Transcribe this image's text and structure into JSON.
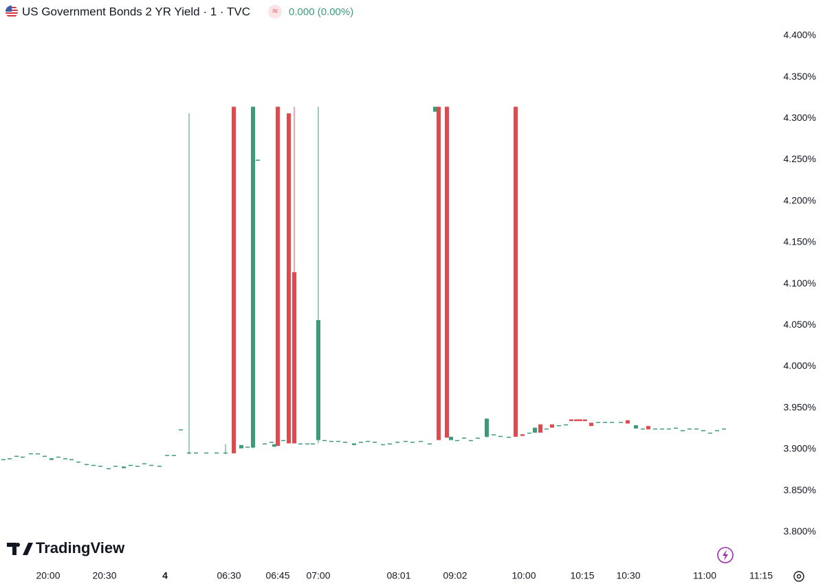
{
  "header": {
    "title": "US Government Bonds 2 YR Yield · 1 · TVC",
    "badge": "≈",
    "change": "0.000 (0.00%)"
  },
  "chart_data": {
    "type": "candlestick",
    "up_color": "#3d9a78",
    "down_color": "#e04a4e",
    "xlim": [
      0,
      111
    ],
    "xticks": [
      {
        "value": 7.0,
        "label": "20:00"
      },
      {
        "value": 15.2,
        "label": "20:30"
      },
      {
        "value": 24.0,
        "label": "4"
      },
      {
        "value": 33.3,
        "label": "06:30"
      },
      {
        "value": 40.4,
        "label": "06:45"
      },
      {
        "value": 46.3,
        "label": "07:00"
      },
      {
        "value": 58.0,
        "label": "08:01"
      },
      {
        "value": 66.2,
        "label": "09:02"
      },
      {
        "value": 76.2,
        "label": "10:00"
      },
      {
        "value": 84.7,
        "label": "10:15"
      },
      {
        "value": 91.4,
        "label": "10:30"
      },
      {
        "value": 102.5,
        "label": "11:00"
      },
      {
        "value": 110.7,
        "label": "11:15"
      }
    ],
    "ylim": [
      3.762,
      4.414
    ],
    "yticks": [
      {
        "value": 3.8,
        "label": "3.800%"
      },
      {
        "value": 3.85,
        "label": "3.850%"
      },
      {
        "value": 3.9,
        "label": "3.900%"
      },
      {
        "value": 3.95,
        "label": "3.950%"
      },
      {
        "value": 4.0,
        "label": "4.000%"
      },
      {
        "value": 4.05,
        "label": "4.050%"
      },
      {
        "value": 4.1,
        "label": "4.100%"
      },
      {
        "value": 4.15,
        "label": "4.150%"
      },
      {
        "value": 4.2,
        "label": "4.200%"
      },
      {
        "value": 4.25,
        "label": "4.250%"
      },
      {
        "value": 4.3,
        "label": "4.300%"
      },
      {
        "value": 4.35,
        "label": "4.350%"
      },
      {
        "value": 4.4,
        "label": "4.400%"
      }
    ],
    "grid": false,
    "x": [
      0.5,
      1.4,
      2.4,
      3.3,
      4.5,
      5.5,
      6.5,
      7.5,
      8.5,
      9.5,
      10.4,
      11.4,
      12.6,
      13.6,
      14.6,
      15.8,
      16.8,
      18.0,
      19.0,
      20.0,
      21.0,
      22.0,
      23.2,
      24.3,
      25.3,
      26.3,
      27.5,
      28.5,
      30.0,
      31.5,
      32.8,
      34.0,
      35.1,
      36.0,
      36.8,
      37.5,
      38.5,
      39.5,
      39.9,
      40.4,
      41.2,
      42.0,
      42.8,
      43.7,
      44.7,
      45.5,
      46.3,
      47.2,
      48.2,
      49.2,
      50.2,
      51.5,
      52.5,
      53.5,
      54.5,
      55.7,
      56.7,
      57.8,
      59.0,
      60.0,
      61.2,
      62.5,
      63.3,
      63.8,
      65.0,
      65.6,
      66.5,
      67.5,
      68.5,
      69.5,
      70.8,
      71.8,
      72.8,
      74.0,
      75.0,
      76.0,
      77.0,
      77.8,
      78.6,
      79.5,
      80.3,
      81.3,
      82.3,
      83.1,
      83.8,
      84.4,
      85.1,
      86.0,
      87.0,
      88.0,
      89.0,
      90.3,
      91.3,
      92.5,
      93.5,
      94.3,
      95.3,
      96.3,
      97.3,
      98.3,
      99.3,
      100.3,
      101.3,
      102.3,
      103.3,
      104.3,
      105.3
    ],
    "open": [
      3.888,
      3.889,
      3.892,
      3.891,
      3.895,
      3.895,
      3.892,
      3.887,
      3.891,
      3.889,
      3.888,
      3.885,
      3.882,
      3.881,
      3.88,
      3.877,
      3.88,
      3.877,
      3.881,
      3.88,
      3.883,
      3.881,
      3.88,
      3.893,
      3.893,
      3.924,
      3.895,
      3.896,
      3.896,
      3.896,
      3.895,
      4.314,
      3.901,
      3.903,
      3.902,
      4.25,
      3.907,
      3.909,
      3.903,
      4.314,
      3.911,
      4.306,
      4.114,
      3.907,
      3.907,
      3.907,
      3.911,
      3.911,
      3.91,
      3.91,
      3.909,
      3.905,
      3.909,
      3.91,
      3.909,
      3.906,
      3.907,
      3.909,
      3.91,
      3.909,
      3.91,
      3.907,
      4.308,
      4.314,
      4.314,
      3.911,
      3.911,
      3.914,
      3.911,
      3.914,
      3.915,
      3.918,
      3.916,
      3.915,
      4.314,
      3.918,
      3.92,
      3.92,
      3.93,
      3.925,
      3.93,
      3.929,
      3.93,
      3.936,
      3.936,
      3.936,
      3.936,
      3.932,
      3.933,
      3.933,
      3.933,
      3.933,
      3.935,
      3.925,
      3.925,
      3.928,
      3.925,
      3.925,
      3.925,
      3.926,
      3.923,
      3.925,
      3.925,
      3.923,
      3.92,
      3.923,
      3.925
    ],
    "high": [
      3.888,
      3.889,
      3.892,
      3.891,
      3.895,
      3.895,
      3.892,
      3.889,
      3.891,
      3.889,
      3.888,
      3.885,
      3.882,
      3.881,
      3.88,
      3.877,
      3.88,
      3.879,
      3.881,
      3.88,
      3.883,
      3.881,
      3.88,
      3.893,
      3.893,
      3.924,
      4.306,
      3.896,
      3.896,
      3.896,
      3.906,
      4.314,
      3.905,
      3.903,
      4.314,
      4.25,
      3.907,
      3.909,
      3.906,
      4.314,
      3.911,
      4.306,
      4.314,
      3.907,
      3.907,
      3.907,
      4.314,
      3.911,
      3.91,
      3.91,
      3.909,
      3.907,
      3.909,
      3.91,
      3.909,
      3.906,
      3.907,
      3.909,
      3.91,
      3.909,
      3.91,
      3.907,
      4.314,
      4.314,
      4.314,
      3.915,
      3.911,
      3.914,
      3.911,
      3.914,
      3.937,
      3.918,
      3.916,
      3.915,
      4.314,
      3.918,
      3.92,
      3.926,
      3.93,
      3.925,
      3.93,
      3.929,
      3.93,
      3.936,
      3.936,
      3.936,
      3.936,
      3.932,
      3.933,
      3.933,
      3.933,
      3.933,
      3.935,
      3.929,
      3.925,
      3.928,
      3.925,
      3.925,
      3.925,
      3.926,
      3.923,
      3.925,
      3.925,
      3.923,
      3.92,
      3.923,
      3.925
    ],
    "low": [
      3.888,
      3.889,
      3.892,
      3.891,
      3.895,
      3.895,
      3.892,
      3.887,
      3.891,
      3.889,
      3.888,
      3.885,
      3.882,
      3.881,
      3.88,
      3.877,
      3.88,
      3.877,
      3.881,
      3.88,
      3.883,
      3.881,
      3.88,
      3.893,
      3.893,
      3.924,
      3.894,
      3.896,
      3.896,
      3.896,
      3.894,
      3.895,
      3.901,
      3.903,
      3.901,
      4.25,
      3.907,
      3.909,
      3.903,
      3.904,
      3.911,
      3.907,
      3.907,
      3.907,
      3.907,
      3.907,
      3.907,
      3.911,
      3.91,
      3.91,
      3.909,
      3.905,
      3.909,
      3.91,
      3.909,
      3.906,
      3.907,
      3.909,
      3.91,
      3.909,
      3.91,
      3.907,
      4.308,
      3.911,
      3.914,
      3.911,
      3.911,
      3.914,
      3.911,
      3.914,
      3.914,
      3.918,
      3.916,
      3.915,
      3.915,
      3.916,
      3.92,
      3.92,
      3.92,
      3.925,
      3.926,
      3.929,
      3.93,
      3.934,
      3.934,
      3.934,
      3.934,
      3.928,
      3.933,
      3.933,
      3.933,
      3.933,
      3.931,
      3.925,
      3.925,
      3.924,
      3.925,
      3.925,
      3.925,
      3.926,
      3.923,
      3.925,
      3.925,
      3.923,
      3.92,
      3.923,
      3.925
    ],
    "close": [
      3.888,
      3.889,
      3.892,
      3.891,
      3.895,
      3.895,
      3.892,
      3.889,
      3.891,
      3.889,
      3.888,
      3.885,
      3.882,
      3.881,
      3.88,
      3.877,
      3.88,
      3.879,
      3.881,
      3.88,
      3.883,
      3.881,
      3.88,
      3.893,
      3.893,
      3.924,
      3.896,
      3.896,
      3.896,
      3.896,
      3.896,
      3.895,
      3.905,
      3.903,
      4.314,
      4.25,
      3.907,
      3.909,
      3.906,
      3.904,
      3.911,
      3.907,
      3.907,
      3.907,
      3.907,
      3.907,
      4.056,
      3.911,
      3.91,
      3.91,
      3.909,
      3.907,
      3.909,
      3.91,
      3.909,
      3.906,
      3.907,
      3.909,
      3.91,
      3.909,
      3.91,
      3.907,
      4.314,
      3.911,
      3.914,
      3.915,
      3.911,
      3.914,
      3.911,
      3.914,
      3.937,
      3.918,
      3.916,
      3.915,
      3.915,
      3.916,
      3.92,
      3.926,
      3.92,
      3.925,
      3.926,
      3.929,
      3.93,
      3.934,
      3.934,
      3.934,
      3.934,
      3.928,
      3.933,
      3.933,
      3.933,
      3.933,
      3.931,
      3.929,
      3.925,
      3.924,
      3.925,
      3.925,
      3.925,
      3.926,
      3.923,
      3.925,
      3.925,
      3.923,
      3.92,
      3.923,
      3.925
    ]
  },
  "footer": {
    "logo": "TradingView"
  }
}
